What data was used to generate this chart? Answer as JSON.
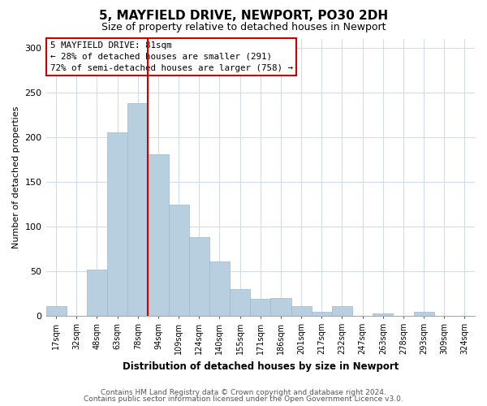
{
  "title": "5, MAYFIELD DRIVE, NEWPORT, PO30 2DH",
  "subtitle": "Size of property relative to detached houses in Newport",
  "xlabel": "Distribution of detached houses by size in Newport",
  "ylabel": "Number of detached properties",
  "bar_color": "#b8cfe0",
  "bar_edge_color": "#a0b8cc",
  "categories": [
    "17sqm",
    "32sqm",
    "48sqm",
    "63sqm",
    "78sqm",
    "94sqm",
    "109sqm",
    "124sqm",
    "140sqm",
    "155sqm",
    "171sqm",
    "186sqm",
    "201sqm",
    "217sqm",
    "232sqm",
    "247sqm",
    "263sqm",
    "278sqm",
    "293sqm",
    "309sqm",
    "324sqm"
  ],
  "values": [
    11,
    0,
    52,
    205,
    238,
    181,
    124,
    88,
    61,
    30,
    19,
    20,
    11,
    5,
    11,
    0,
    3,
    0,
    5,
    0,
    0
  ],
  "ylim": [
    0,
    310
  ],
  "yticks": [
    0,
    50,
    100,
    150,
    200,
    250,
    300
  ],
  "marker_bar_index": 4,
  "marker_label": "5 MAYFIELD DRIVE: 81sqm",
  "annotation_line1": "← 28% of detached houses are smaller (291)",
  "annotation_line2": "72% of semi-detached houses are larger (758) →",
  "marker_color": "#cc0000",
  "box_facecolor": "#ffffff",
  "box_edgecolor": "#cc0000",
  "footer_line1": "Contains HM Land Registry data © Crown copyright and database right 2024.",
  "footer_line2": "Contains public sector information licensed under the Open Government Licence v3.0.",
  "plot_bg_color": "#ffffff",
  "fig_bg_color": "#ffffff",
  "grid_color": "#d0dce8"
}
